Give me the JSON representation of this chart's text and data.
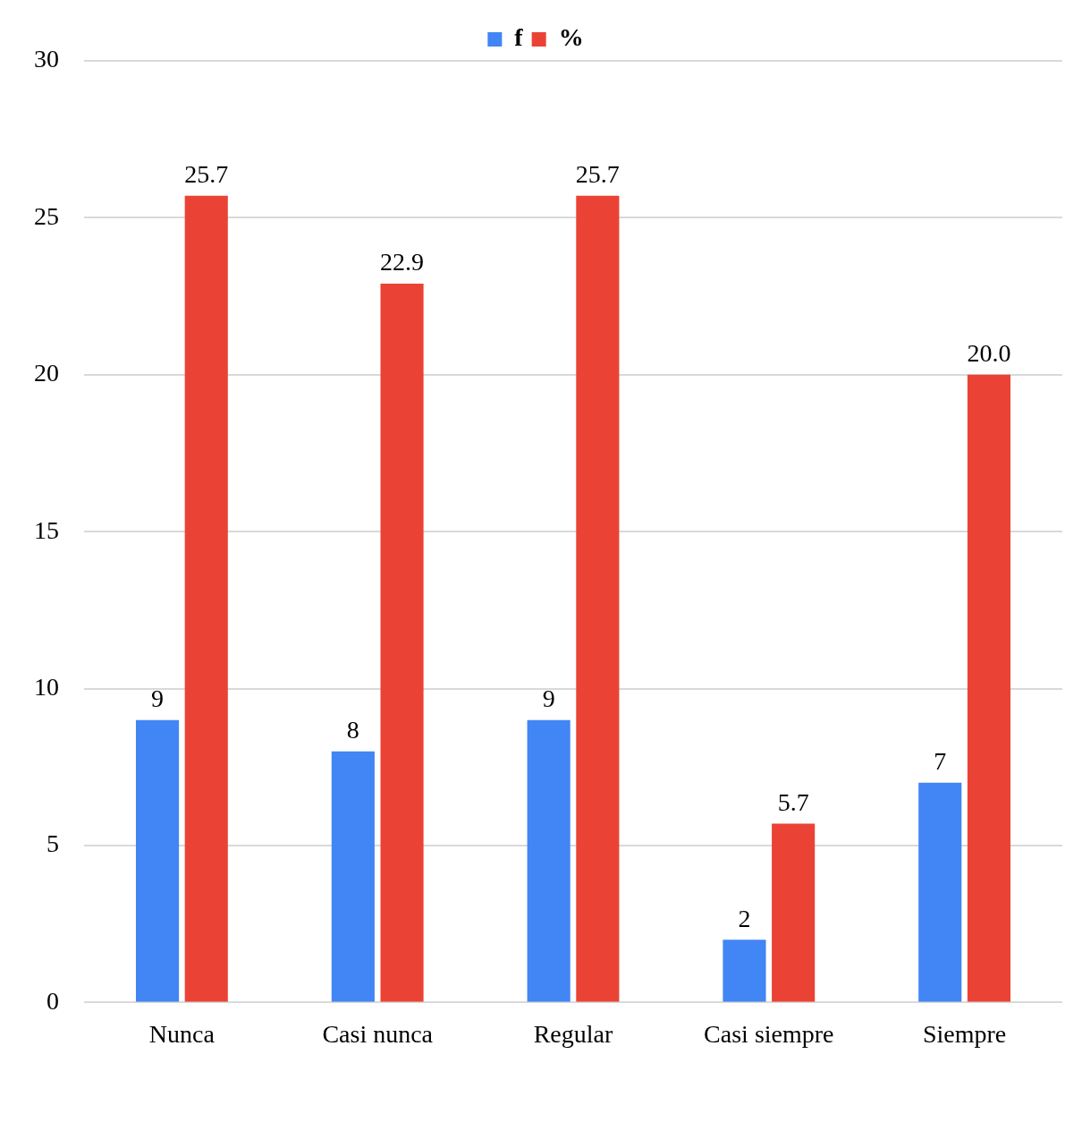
{
  "chart_data": {
    "type": "bar",
    "categories": [
      "Nunca",
      "Casi nunca",
      "Regular",
      "Casi siempre",
      "Siempre"
    ],
    "series": [
      {
        "name": "f",
        "color": "#4285f4",
        "values": [
          9,
          8,
          9,
          2,
          7
        ],
        "value_labels": [
          "9",
          "8",
          "9",
          "2",
          "7"
        ]
      },
      {
        "name": "%",
        "color": "#ea4335",
        "values": [
          25.7,
          22.9,
          25.7,
          5.7,
          20.0
        ],
        "value_labels": [
          "25.7",
          "22.9",
          "25.7",
          "5.7",
          "20.0"
        ]
      }
    ],
    "ylim": [
      0,
      30
    ],
    "yticks": [
      0,
      5,
      10,
      15,
      20,
      25,
      30
    ],
    "grid": "y",
    "legend": "top"
  }
}
